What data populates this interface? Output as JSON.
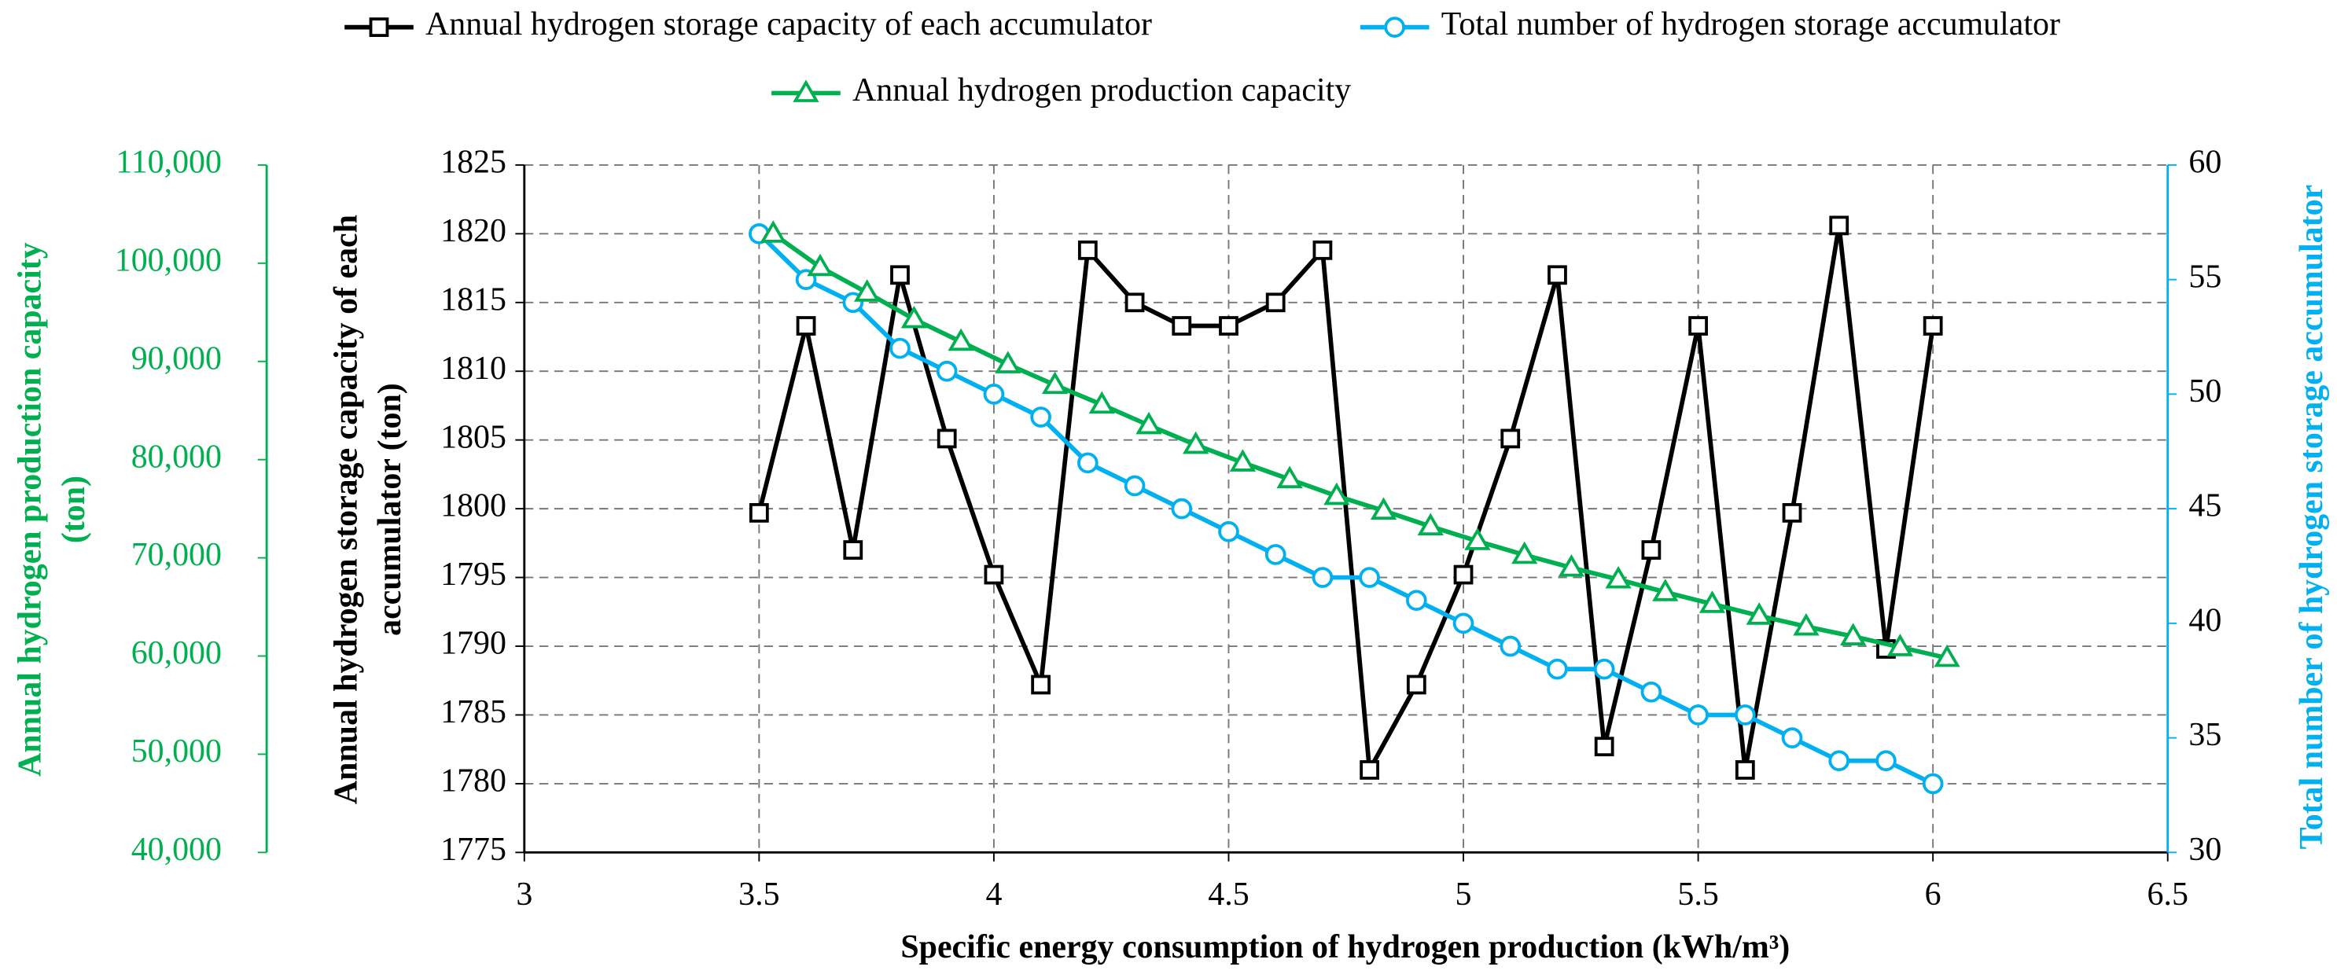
{
  "chart_data": {
    "type": "line",
    "xlabel": "Specific energy consumption of hydrogen production (kWh/m³)",
    "ylabel": [
      "Annual hydrogen storage capacity of each",
      "accumulator (ton)"
    ],
    "y2label": "Total number of hydrogen storage accumulator",
    "y3label": [
      "Annual hydrogen production capacity",
      "(ton)"
    ],
    "x": [
      3.5,
      3.6,
      3.7,
      3.8,
      3.9,
      4.0,
      4.1,
      4.2,
      4.3,
      4.4,
      4.5,
      4.6,
      4.7,
      4.8,
      4.9,
      5.0,
      5.1,
      5.2,
      5.3,
      5.4,
      5.5,
      5.6,
      5.7,
      5.8,
      5.9,
      6.0
    ],
    "xlim": [
      3,
      6.5
    ],
    "xticks": [
      3,
      3.5,
      4,
      4.5,
      5,
      5.5,
      6,
      6.5
    ],
    "ylim": [
      1775,
      1825
    ],
    "yticks": [
      1775,
      1780,
      1785,
      1790,
      1795,
      1800,
      1805,
      1810,
      1815,
      1820,
      1825
    ],
    "y2lim": [
      30,
      60
    ],
    "y2ticks": [
      30,
      35,
      40,
      45,
      50,
      55,
      60
    ],
    "y3lim": [
      40000,
      110000
    ],
    "y3ticks": [
      {
        "value": 40000,
        "label": "40,000"
      },
      {
        "value": 50000,
        "label": "50,000"
      },
      {
        "value": 60000,
        "label": "60,000"
      },
      {
        "value": 70000,
        "label": "70,000"
      },
      {
        "value": 80000,
        "label": "80,000"
      },
      {
        "value": 90000,
        "label": "90,000"
      },
      {
        "value": 100000,
        "label": "100,000"
      },
      {
        "value": 110000,
        "label": "110,000"
      }
    ],
    "grid": true,
    "series": [
      {
        "name": "Annual hydrogen storage capacity of each accumulator",
        "color": "#000000",
        "marker": "square",
        "axis": "y",
        "values": [
          1799.7,
          1813.3,
          1797.0,
          1817.0,
          1805.1,
          1795.2,
          1787.2,
          1818.8,
          1815.0,
          1813.3,
          1813.3,
          1815.0,
          1818.8,
          1781.0,
          1787.2,
          1795.2,
          1805.1,
          1817.0,
          1782.7,
          1797.0,
          1813.3,
          1781.0,
          1799.7,
          1820.6,
          1789.8,
          1813.3
        ]
      },
      {
        "name": "Total number of hydrogen storage accumulator",
        "color": "#00b0f0",
        "marker": "circle",
        "axis": "y2",
        "values": [
          57,
          55,
          54,
          52,
          51,
          50,
          49,
          47,
          46,
          45,
          44,
          43,
          42,
          42,
          41,
          40,
          39,
          38,
          38,
          37,
          36,
          36,
          35,
          34,
          34,
          33
        ]
      },
      {
        "name": "Annual hydrogen production capacity",
        "color": "#00b050",
        "marker": "triangle",
        "axis": "y3",
        "x": [
          3.53,
          3.63,
          3.73,
          3.83,
          3.93,
          4.03,
          4.13,
          4.23,
          4.33,
          4.43,
          4.53,
          4.63,
          4.73,
          4.83,
          4.93,
          5.03,
          5.13,
          5.23,
          5.33,
          5.43,
          5.53,
          5.63,
          5.73,
          5.83,
          5.93,
          6.03
        ],
        "values": [
          103000,
          99600,
          97000,
          94300,
          92000,
          89700,
          87600,
          85600,
          83500,
          81500,
          79700,
          78000,
          76300,
          74800,
          73200,
          71700,
          70300,
          69000,
          67800,
          66500,
          65300,
          64100,
          63000,
          62000,
          60900,
          59800
        ]
      }
    ]
  }
}
